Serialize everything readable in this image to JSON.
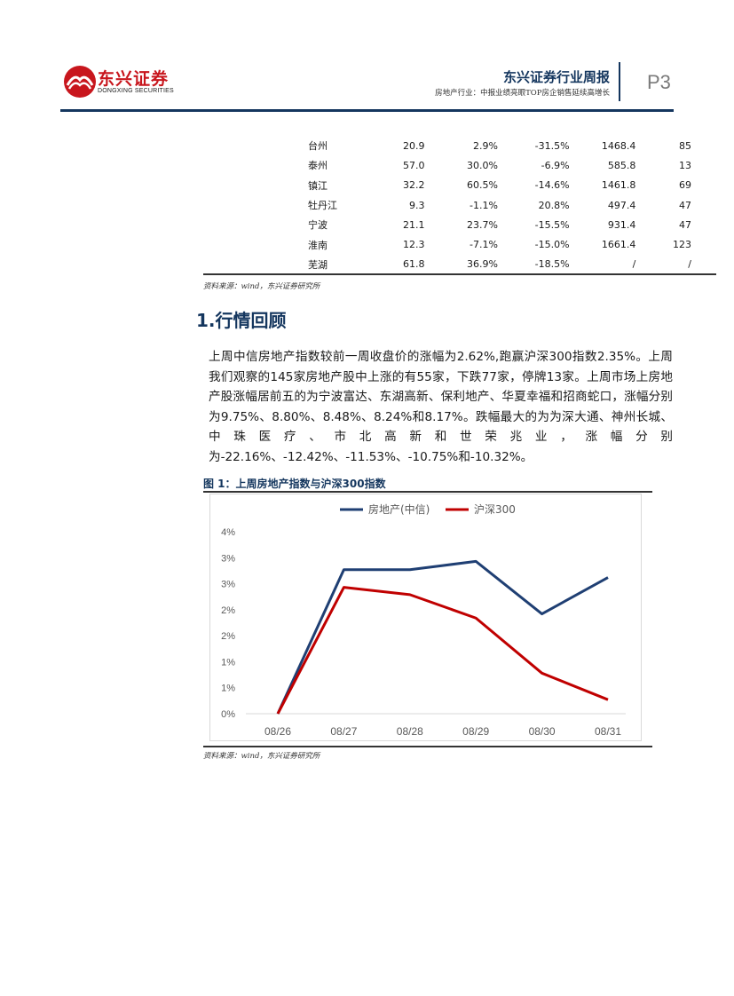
{
  "header": {
    "logo_cn": "东兴证券",
    "logo_en": "DONGXING SECURITIES",
    "report_title": "东兴证券行业周报",
    "report_subtitle": "房地产行业：中报业绩亮眼TOP房企销售延续高增长",
    "page_number": "P3",
    "brand_color": "#c8161d",
    "accent_color": "#14365e"
  },
  "table": {
    "rows": [
      [
        "台州",
        "20.9",
        "2.9%",
        "-31.5%",
        "1468.4",
        "85"
      ],
      [
        "泰州",
        "57.0",
        "30.0%",
        "-6.9%",
        "585.8",
        "13"
      ],
      [
        "镇江",
        "32.2",
        "60.5%",
        "-14.6%",
        "1461.8",
        "69"
      ],
      [
        "牡丹江",
        "9.3",
        "-1.1%",
        "20.8%",
        "497.4",
        "47"
      ],
      [
        "宁波",
        "21.1",
        "23.7%",
        "-15.5%",
        "931.4",
        "47"
      ],
      [
        "淮南",
        "12.3",
        "-7.1%",
        "-15.0%",
        "1661.4",
        "123"
      ],
      [
        "芜湖",
        "61.8",
        "36.9%",
        "-18.5%",
        "/",
        "/"
      ]
    ],
    "source": "资料来源：wind，东兴证券研究所"
  },
  "section": {
    "heading": "1.行情回顾",
    "paragraph": "上周中信房地产指数较前一周收盘价的涨幅为2.62%,跑赢沪深300指数2.35%。上周我们观察的145家房地产股中上涨的有55家，下跌77家，停牌13家。上周市场上房地产股涨幅居前五的为宁波富达、东湖高新、保利地产、华夏幸福和招商蛇口，涨幅分别为9.75%、8.80%、8.48%、8.24%和8.17%。跌幅最大的为为深大通、神州长城、中珠医疗、市北高新和世荣兆业，涨幅分别为-22.16%、-12.42%、-11.53%、-10.75%和-10.32%。"
  },
  "figure": {
    "title": "图 1：上周房地产指数与沪深300指数",
    "source": "资料来源：wind，东兴证券研究所"
  },
  "chart_data": {
    "type": "line",
    "title": "",
    "xlabel": "",
    "ylabel": "",
    "categories": [
      "08/26",
      "08/27",
      "08/28",
      "08/29",
      "08/30",
      "08/31"
    ],
    "yticks": [
      "0%",
      "1%",
      "1%",
      "2%",
      "2%",
      "3%",
      "3%",
      "4%"
    ],
    "ylim": [
      0,
      3.5
    ],
    "grid": false,
    "legend": "top-center",
    "series": [
      {
        "name": "房地产(中信)",
        "color": "#1f3f73",
        "values": [
          0.0,
          2.77,
          2.77,
          2.93,
          1.92,
          2.62
        ]
      },
      {
        "name": "沪深300",
        "color": "#c00000",
        "values": [
          0.0,
          2.43,
          2.29,
          1.84,
          0.78,
          0.27
        ]
      }
    ]
  }
}
